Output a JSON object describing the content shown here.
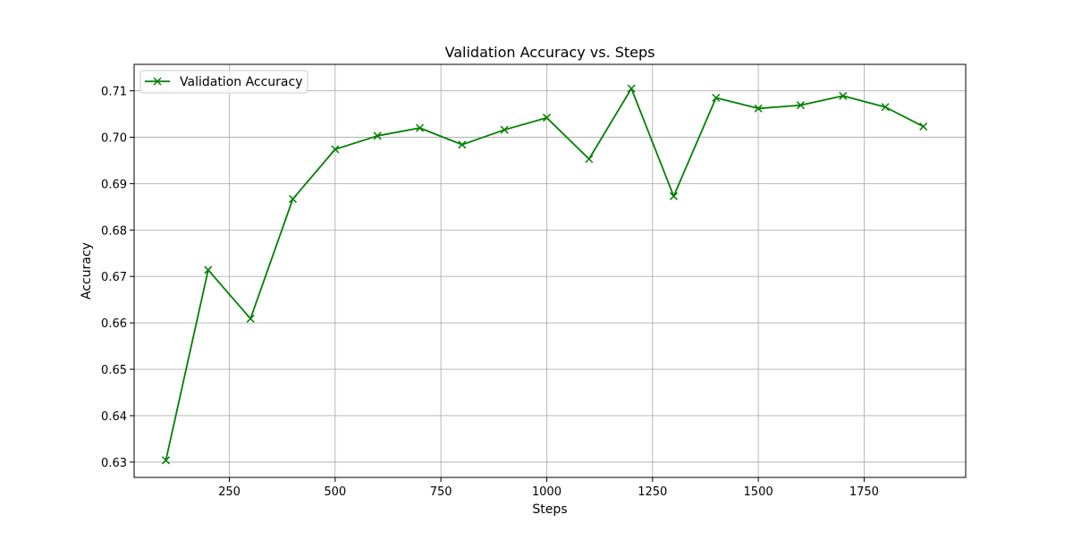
{
  "chart_data": {
    "type": "line",
    "title": "Validation Accuracy vs. Steps",
    "xlabel": "Steps",
    "ylabel": "Accuracy",
    "xlim": [
      25,
      1990
    ],
    "ylim": [
      0.6267,
      0.7157
    ],
    "xticks": [
      250,
      500,
      750,
      1000,
      1250,
      1500,
      1750
    ],
    "yticks": [
      0.63,
      0.64,
      0.65,
      0.66,
      0.67,
      0.68,
      0.69,
      0.7,
      0.71
    ],
    "ytick_labels": [
      "0.63",
      "0.64",
      "0.65",
      "0.66",
      "0.67",
      "0.68",
      "0.69",
      "0.70",
      "0.71"
    ],
    "grid": true,
    "legend_position": "top-left",
    "series": [
      {
        "name": "Validation Accuracy",
        "color": "#008000",
        "marker": "x",
        "x": [
          100,
          200,
          300,
          400,
          500,
          600,
          700,
          800,
          900,
          1000,
          1100,
          1200,
          1300,
          1400,
          1500,
          1600,
          1700,
          1800,
          1890
        ],
        "y": [
          0.6304,
          0.6714,
          0.6609,
          0.6867,
          0.6974,
          0.7003,
          0.702,
          0.6984,
          0.7016,
          0.7042,
          0.6953,
          0.7105,
          0.6873,
          0.7085,
          0.7062,
          0.7069,
          0.7089,
          0.7065,
          0.7023
        ]
      }
    ]
  }
}
